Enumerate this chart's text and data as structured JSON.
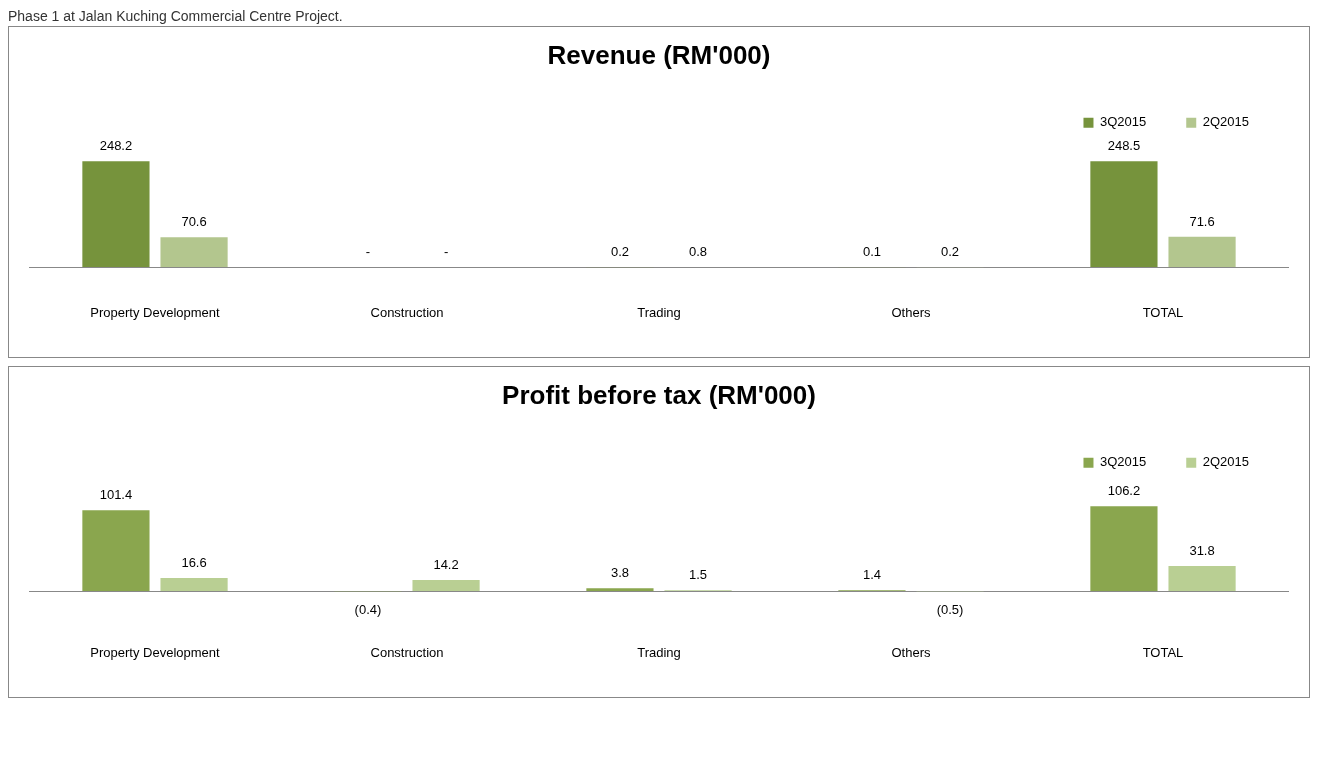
{
  "chart_data": [
    {
      "type": "bar",
      "title": "Revenue (RM'000)",
      "annotations": [
        "Phase 1 at Jalan Kuching Commercial Centre Project."
      ],
      "legend": "top right",
      "categories": [
        "Property Development",
        "Construction",
        "Trading",
        "Others",
        "TOTAL"
      ],
      "series": [
        {
          "name": "3Q2015",
          "color": "#76933c",
          "values": [
            248.2,
            null,
            0.2,
            0.1,
            248.5
          ],
          "value_labels": [
            "248.2",
            "-",
            "0.2",
            "0.1",
            "248.5"
          ]
        },
        {
          "name": "2Q2015",
          "color": "#b3c68e",
          "values": [
            70.6,
            null,
            0.8,
            0.2,
            71.6
          ],
          "value_labels": [
            "70.6",
            "-",
            "0.8",
            "0.2",
            "71.6"
          ]
        }
      ]
    },
    {
      "type": "bar",
      "title": "Profit before tax (RM'000)",
      "legend": "top right",
      "categories": [
        "Property Development",
        "Construction",
        "Trading",
        "Others",
        "TOTAL"
      ],
      "series": [
        {
          "name": "3Q2015",
          "color": "#8aa64e",
          "values": [
            101.4,
            -0.4,
            3.8,
            1.4,
            106.2
          ],
          "value_labels": [
            "101.4",
            "(0.4)",
            "3.8",
            "1.4",
            "106.2"
          ]
        },
        {
          "name": "2Q2015",
          "color": "#b9cf93",
          "values": [
            16.6,
            14.2,
            1.5,
            -0.5,
            31.8
          ],
          "value_labels": [
            "16.6",
            "14.2",
            "1.5",
            "(0.5)",
            "31.8"
          ]
        }
      ]
    }
  ]
}
